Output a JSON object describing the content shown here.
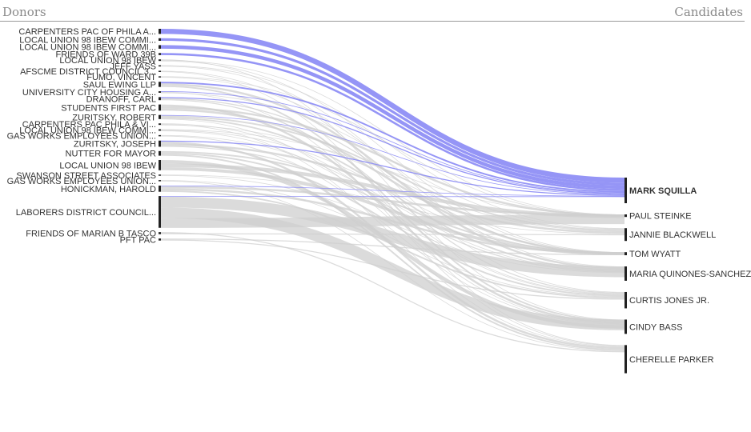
{
  "header": {
    "donors_label": "Donors",
    "candidates_label": "Candidates"
  },
  "colors": {
    "active_link": "#8f8ff5",
    "inactive_link": "#cfcfcf",
    "node": "#222222",
    "text": "#333333"
  },
  "selected_candidate": "MARK SQUILLA",
  "donors": [
    {
      "label": "CARPENTERS PAC OF PHILA A...",
      "weight": 10,
      "to_selected": 10
    },
    {
      "label": "LOCAL UNION 98 IBEW COMMI...",
      "weight": 5,
      "to_selected": 5
    },
    {
      "label": "LOCAL UNION 98 IBEW COMMI...",
      "weight": 7,
      "to_selected": 7
    },
    {
      "label": "FRIENDS OF WARD 39B",
      "weight": 4,
      "to_selected": 4
    },
    {
      "label": "LOCAL UNION 98 IBEW",
      "weight": 3,
      "to_selected": 0
    },
    {
      "label": "JEFF YASS",
      "weight": 2,
      "to_selected": 0
    },
    {
      "label": "AFSCME DISTRICT COUNCIL 3...",
      "weight": 2,
      "to_selected": 0
    },
    {
      "label": "FUMO, VINCENT",
      "weight": 2,
      "to_selected": 0
    },
    {
      "label": "SAUL EWING LLP",
      "weight": 10,
      "to_selected": 3
    },
    {
      "label": "UNIVERSITY CITY HOUSING A...",
      "weight": 3,
      "to_selected": 1
    },
    {
      "label": "DRANOFF, CARL",
      "weight": 6,
      "to_selected": 2
    },
    {
      "label": "STUDENTS FIRST PAC",
      "weight": 12,
      "to_selected": 0
    },
    {
      "label": "ZURITSKY, ROBERT",
      "weight": 8,
      "to_selected": 1
    },
    {
      "label": "CARPENTERS PAC PHILA & VI...",
      "weight": 3,
      "to_selected": 0
    },
    {
      "label": "LOCAL UNION 98 IBEW COMMI...",
      "weight": 3,
      "to_selected": 0
    },
    {
      "label": "GAS WORKS EMPLOYEES UNION...",
      "weight": 2,
      "to_selected": 0
    },
    {
      "label": "ZURITSKY, JOSEPH",
      "weight": 12,
      "to_selected": 2
    },
    {
      "label": "NUTTER FOR MAYOR",
      "weight": 9,
      "to_selected": 0
    },
    {
      "label": "LOCAL UNION 98 IBEW",
      "weight": 20,
      "to_selected": 0
    },
    {
      "label": "SWANSON STREET ASSOCIATES",
      "weight": 2,
      "to_selected": 0
    },
    {
      "label": "GAS WORKS EMPLOYEES UNION...",
      "weight": 2,
      "to_selected": 0
    },
    {
      "label": "HONICKMAN, HAROLD",
      "weight": 12,
      "to_selected": 1
    },
    {
      "label": "LABORERS DISTRICT COUNCIL...",
      "weight": 62,
      "to_selected": 1
    },
    {
      "label": "FRIENDS OF MARIAN B TASCO",
      "weight": 4,
      "to_selected": 0
    },
    {
      "label": "PFT PAC",
      "weight": 4,
      "to_selected": 0
    }
  ],
  "candidates": [
    {
      "label": "MARK SQUILLA",
      "weight": 50
    },
    {
      "label": "PAUL STEINKE",
      "weight": 5
    },
    {
      "label": "JANNIE BLACKWELL",
      "weight": 25
    },
    {
      "label": "TOM WYATT",
      "weight": 6
    },
    {
      "label": "MARIA QUINONES-SANCHEZ",
      "weight": 28
    },
    {
      "label": "CURTIS JONES JR.",
      "weight": 32
    },
    {
      "label": "CINDY BASS",
      "weight": 28
    },
    {
      "label": "CHERELLE PARKER",
      "weight": 55
    }
  ]
}
